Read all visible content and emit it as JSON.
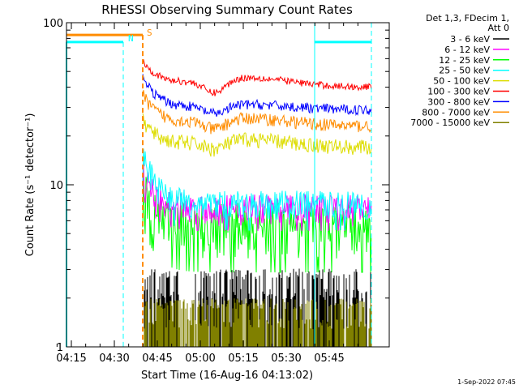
{
  "chart_data": {
    "type": "line",
    "title": "RHESSI Observing Summary Count Rates",
    "xlabel": "Start Time (16-Aug-16 04:13:02)",
    "ylabel": "Count Rate (s⁻¹ detector⁻¹)",
    "y_scale": "log",
    "ylim": [
      1,
      100
    ],
    "x_ticks": [
      "04:15",
      "04:30",
      "04:45",
      "05:00",
      "05:15",
      "05:30",
      "05:45"
    ],
    "y_ticks": [
      "1",
      "10",
      "100"
    ],
    "grid": false,
    "legend_position": "right",
    "header_lines": [
      "Det 1,3, FDecim 1,",
      "Att 0"
    ],
    "timestamp": "1-Sep-2022 07:45",
    "flags": [
      {
        "label": "N",
        "color": "#00ffff"
      },
      {
        "label": "S",
        "color": "#ff8c00"
      }
    ],
    "series": [
      {
        "name": "3 - 6 keV",
        "color": "#000000",
        "level": 2.0
      },
      {
        "name": "6 - 12 keV",
        "color": "#ff00ff",
        "level": 6.5
      },
      {
        "name": "12 - 25 keV",
        "color": "#00ff00",
        "level": 4.8
      },
      {
        "name": "25 - 50 keV",
        "color": "#00ffff",
        "level": 7.0
      },
      {
        "name": "50 - 100 keV",
        "color": "#dddd00",
        "level": 17
      },
      {
        "name": "100 - 300 keV",
        "color": "#ff0000",
        "level": 40
      },
      {
        "name": "300 - 800 keV",
        "color": "#0000ff",
        "level": 29
      },
      {
        "name": "800 - 7000 keV",
        "color": "#ff8c00",
        "level": 23
      },
      {
        "name": "7000 - 15000 keV",
        "color": "#808000",
        "level": 1.5
      }
    ]
  }
}
